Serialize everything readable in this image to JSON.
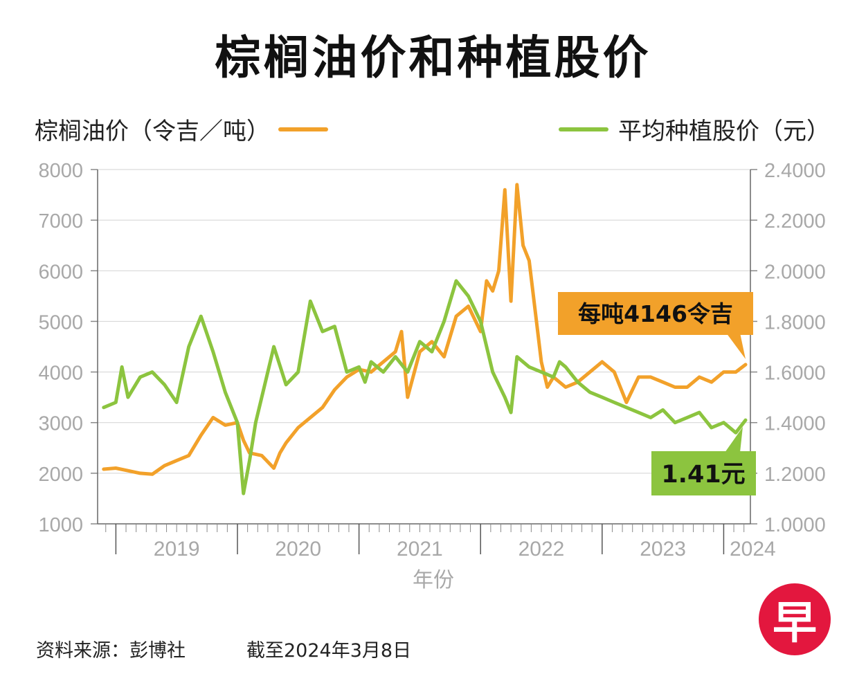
{
  "title": "棕榈油价和种植股价",
  "legend": {
    "left_label": "棕榈油价（令吉／吨）",
    "right_label": "平均种植股价（元）",
    "left_color": "#f2a12a",
    "right_color": "#8cc43f"
  },
  "callouts": {
    "palm": "每吨4146令吉",
    "stock": "1.41元",
    "palm_color": "#f2a12a",
    "stock_color": "#8cc43f"
  },
  "footer": {
    "source": "资料来源：彭博社",
    "date": "截至2024年3月8日"
  },
  "logo_char": "早",
  "chart_data": {
    "type": "line",
    "title": "棕榈油价和种植股价",
    "xlabel": "年份",
    "ylabel_left": "棕榈油价（令吉／吨）",
    "ylabel_right": "平均种植股价（元）",
    "x_ticks": [
      "2019",
      "2020",
      "2021",
      "2022",
      "2023",
      "2024"
    ],
    "ylim_left": [
      1000,
      8000
    ],
    "ylim_right": [
      1.0,
      2.4
    ],
    "y_ticks_left": [
      "8000",
      "7000",
      "6000",
      "5000",
      "4000",
      "3000",
      "2000",
      "1000"
    ],
    "y_ticks_right": [
      "2.4000",
      "2.2000",
      "2.0000",
      "1.8000",
      "1.6000",
      "1.4000",
      "1.2000",
      "1.0000"
    ],
    "series": [
      {
        "name": "棕榈油价（令吉／吨）",
        "axis": "left",
        "color": "#f2a12a",
        "x": [
          2018.9,
          2019.0,
          2019.1,
          2019.2,
          2019.3,
          2019.4,
          2019.5,
          2019.6,
          2019.7,
          2019.8,
          2019.9,
          2020.0,
          2020.05,
          2020.1,
          2020.2,
          2020.3,
          2020.35,
          2020.4,
          2020.5,
          2020.6,
          2020.7,
          2020.8,
          2020.9,
          2021.0,
          2021.1,
          2021.2,
          2021.3,
          2021.35,
          2021.4,
          2021.5,
          2021.6,
          2021.7,
          2021.8,
          2021.9,
          2022.0,
          2022.05,
          2022.1,
          2022.15,
          2022.2,
          2022.25,
          2022.3,
          2022.35,
          2022.4,
          2022.45,
          2022.5,
          2022.55,
          2022.6,
          2022.7,
          2022.8,
          2022.9,
          2023.0,
          2023.1,
          2023.2,
          2023.3,
          2023.4,
          2023.5,
          2023.6,
          2023.7,
          2023.8,
          2023.9,
          2024.0,
          2024.1,
          2024.18
        ],
        "values": [
          2080,
          2100,
          2050,
          2000,
          1980,
          2150,
          2250,
          2350,
          2750,
          3100,
          2950,
          3000,
          2650,
          2400,
          2350,
          2100,
          2400,
          2600,
          2900,
          3100,
          3300,
          3650,
          3900,
          4050,
          4000,
          4200,
          4400,
          4800,
          3500,
          4400,
          4600,
          4300,
          5100,
          5300,
          4800,
          5800,
          5600,
          6000,
          7600,
          5400,
          7700,
          6500,
          6200,
          5200,
          4200,
          3700,
          3900,
          3700,
          3800,
          4000,
          4200,
          4000,
          3400,
          3900,
          3900,
          3800,
          3700,
          3700,
          3900,
          3800,
          4000,
          4000,
          4146
        ]
      },
      {
        "name": "平均种植股价（元）",
        "axis": "right",
        "color": "#8cc43f",
        "x": [
          2018.9,
          2019.0,
          2019.05,
          2019.1,
          2019.2,
          2019.3,
          2019.4,
          2019.5,
          2019.6,
          2019.7,
          2019.8,
          2019.9,
          2020.0,
          2020.05,
          2020.1,
          2020.15,
          2020.2,
          2020.3,
          2020.4,
          2020.5,
          2020.6,
          2020.7,
          2020.8,
          2020.9,
          2021.0,
          2021.05,
          2021.1,
          2021.2,
          2021.3,
          2021.4,
          2021.5,
          2021.6,
          2021.7,
          2021.8,
          2021.9,
          2022.0,
          2022.1,
          2022.2,
          2022.25,
          2022.3,
          2022.4,
          2022.5,
          2022.6,
          2022.65,
          2022.7,
          2022.8,
          2022.9,
          2023.0,
          2023.1,
          2023.2,
          2023.3,
          2023.4,
          2023.5,
          2023.6,
          2023.7,
          2023.8,
          2023.9,
          2024.0,
          2024.1,
          2024.18
        ],
        "values": [
          1.46,
          1.48,
          1.62,
          1.5,
          1.58,
          1.6,
          1.55,
          1.48,
          1.7,
          1.82,
          1.68,
          1.52,
          1.4,
          1.12,
          1.25,
          1.4,
          1.5,
          1.7,
          1.55,
          1.6,
          1.88,
          1.76,
          1.78,
          1.6,
          1.62,
          1.56,
          1.64,
          1.6,
          1.66,
          1.6,
          1.72,
          1.68,
          1.8,
          1.96,
          1.9,
          1.8,
          1.6,
          1.5,
          1.44,
          1.66,
          1.62,
          1.6,
          1.58,
          1.64,
          1.62,
          1.56,
          1.52,
          1.5,
          1.48,
          1.46,
          1.44,
          1.42,
          1.45,
          1.4,
          1.42,
          1.44,
          1.38,
          1.4,
          1.36,
          1.41
        ]
      }
    ],
    "annotations": [
      "每吨4146令吉",
      "1.41元"
    ],
    "grid": true
  }
}
